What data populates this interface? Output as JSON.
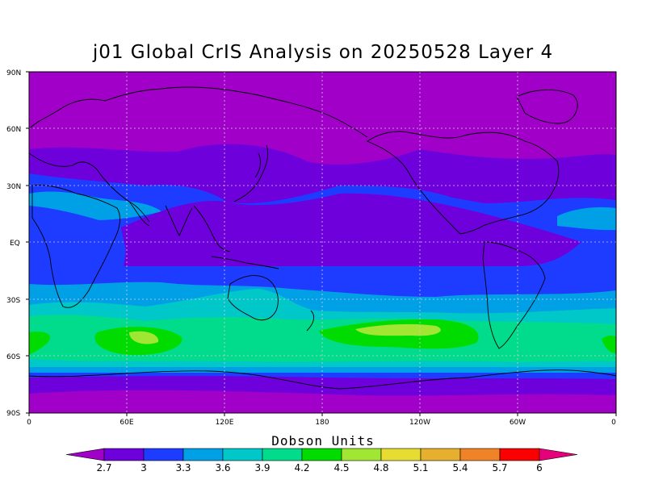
{
  "title": "j01 Global CrIS Analysis on 20250528 Layer 4",
  "units_label": "Dobson Units",
  "lat_ticks": [
    "90N",
    "60N",
    "30N",
    "EQ",
    "30S",
    "60S",
    "90S"
  ],
  "lon_ticks": [
    "0",
    "60E",
    "120E",
    "180",
    "120W",
    "60W",
    "0"
  ],
  "colorbar": {
    "levels": [
      "2.7",
      "3",
      "3.3",
      "3.6",
      "3.9",
      "4.2",
      "4.5",
      "4.8",
      "5.1",
      "5.4",
      "5.7",
      "6"
    ],
    "colors": [
      "#a000c8",
      "#6e00dc",
      "#1e3cff",
      "#00a0e6",
      "#00c8c8",
      "#00dc8c",
      "#00dc00",
      "#a0e632",
      "#e6dc32",
      "#e6af2d",
      "#f08228",
      "#fa0000",
      "#e6007a"
    ]
  }
}
